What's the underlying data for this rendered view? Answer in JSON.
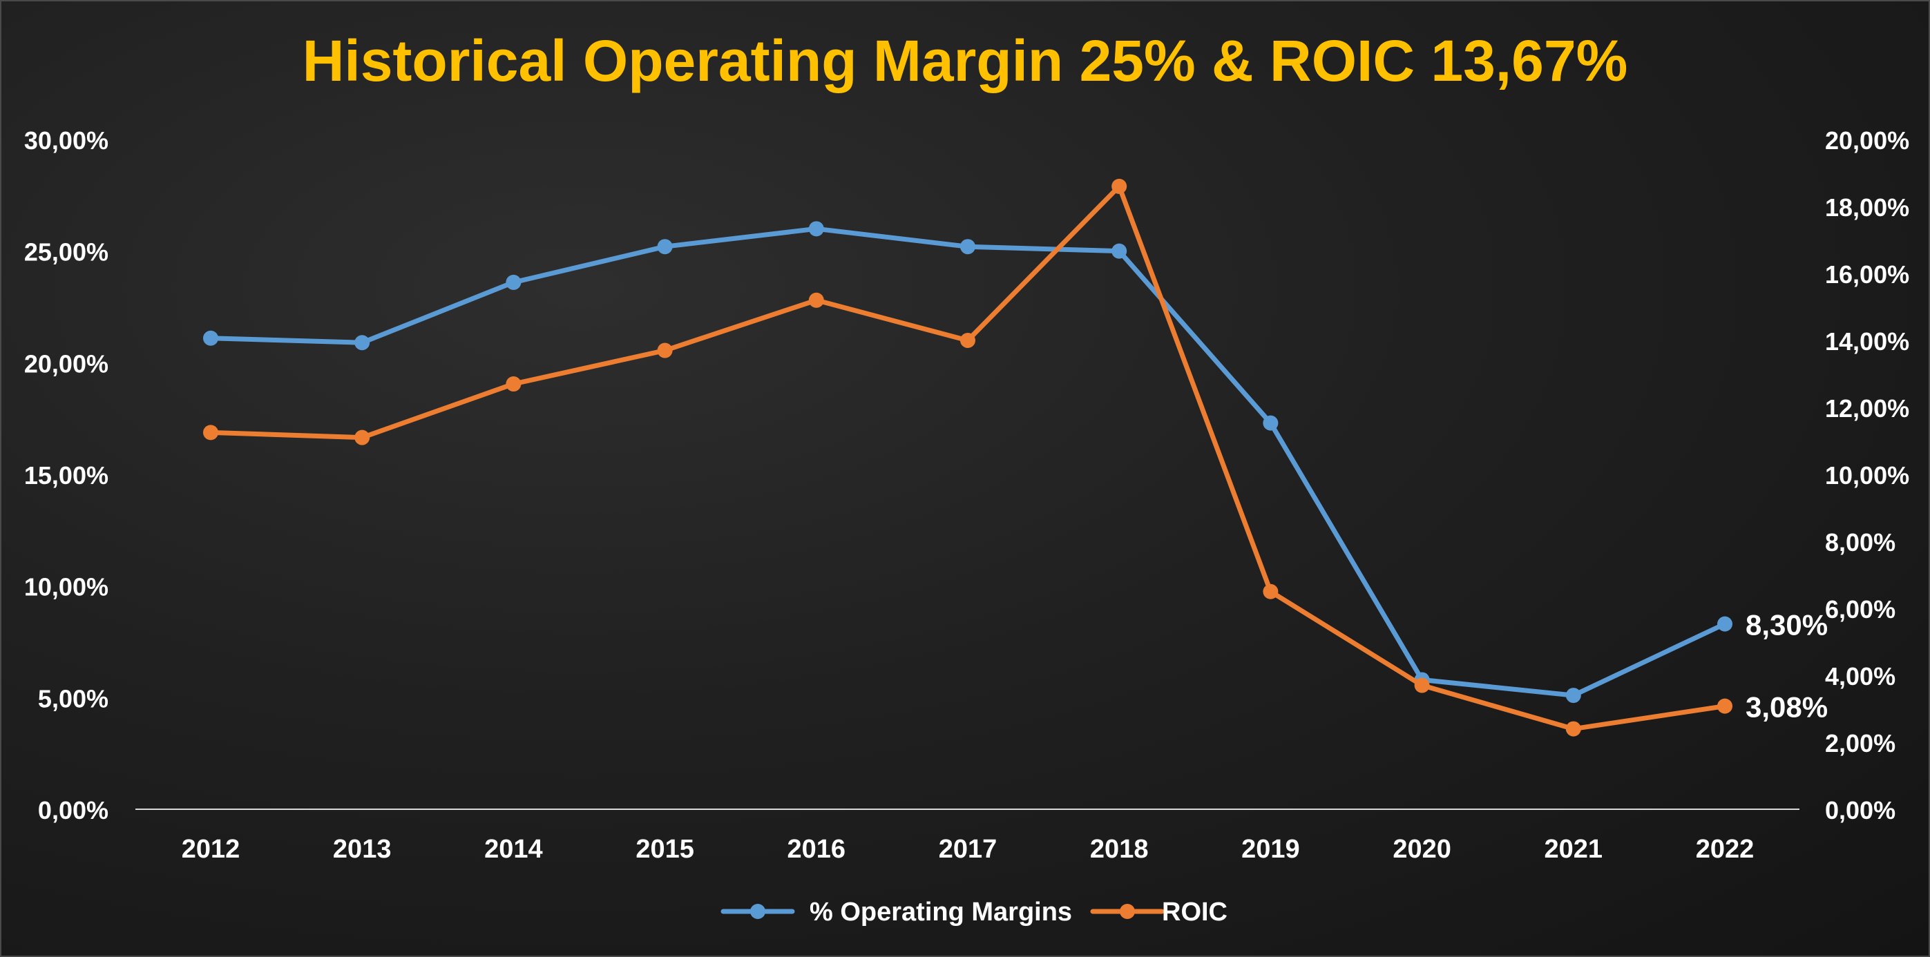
{
  "chart_data": {
    "type": "line",
    "title": "Historical Operating Margin  25% & ROIC 13,67%",
    "categories": [
      "2012",
      "2013",
      "2014",
      "2015",
      "2016",
      "2017",
      "2018",
      "2019",
      "2020",
      "2021",
      "2022"
    ],
    "series": [
      {
        "name": "% Operating Margins",
        "axis": "left",
        "color": "#5b9bd5",
        "values": [
          21.1,
          20.9,
          23.6,
          25.2,
          26.0,
          25.2,
          25.0,
          17.3,
          5.8,
          5.1,
          8.3
        ],
        "end_label": "8,30%"
      },
      {
        "name": "ROIC",
        "axis": "right",
        "color": "#ed7d31",
        "values": [
          11.25,
          11.1,
          12.7,
          13.7,
          15.2,
          14.0,
          18.6,
          6.5,
          3.7,
          2.4,
          3.08
        ],
        "end_label": "3,08%"
      }
    ],
    "y_left": {
      "min": 0,
      "max": 30,
      "step": 5,
      "tick_labels": [
        "0,00%",
        "5,00%",
        "10,00%",
        "15,00%",
        "20,00%",
        "25,00%",
        "30,00%"
      ]
    },
    "y_right": {
      "min": 0,
      "max": 20,
      "step": 2,
      "tick_labels": [
        "0,00%",
        "2,00%",
        "4,00%",
        "6,00%",
        "8,00%",
        "10,00%",
        "12,00%",
        "14,00%",
        "16,00%",
        "18,00%",
        "20,00%"
      ]
    },
    "grid": false,
    "legend": "bottom-center",
    "colors": {
      "title": "#ffc000",
      "text": "#ffffff",
      "axis_line": "#d9d9d9"
    }
  }
}
